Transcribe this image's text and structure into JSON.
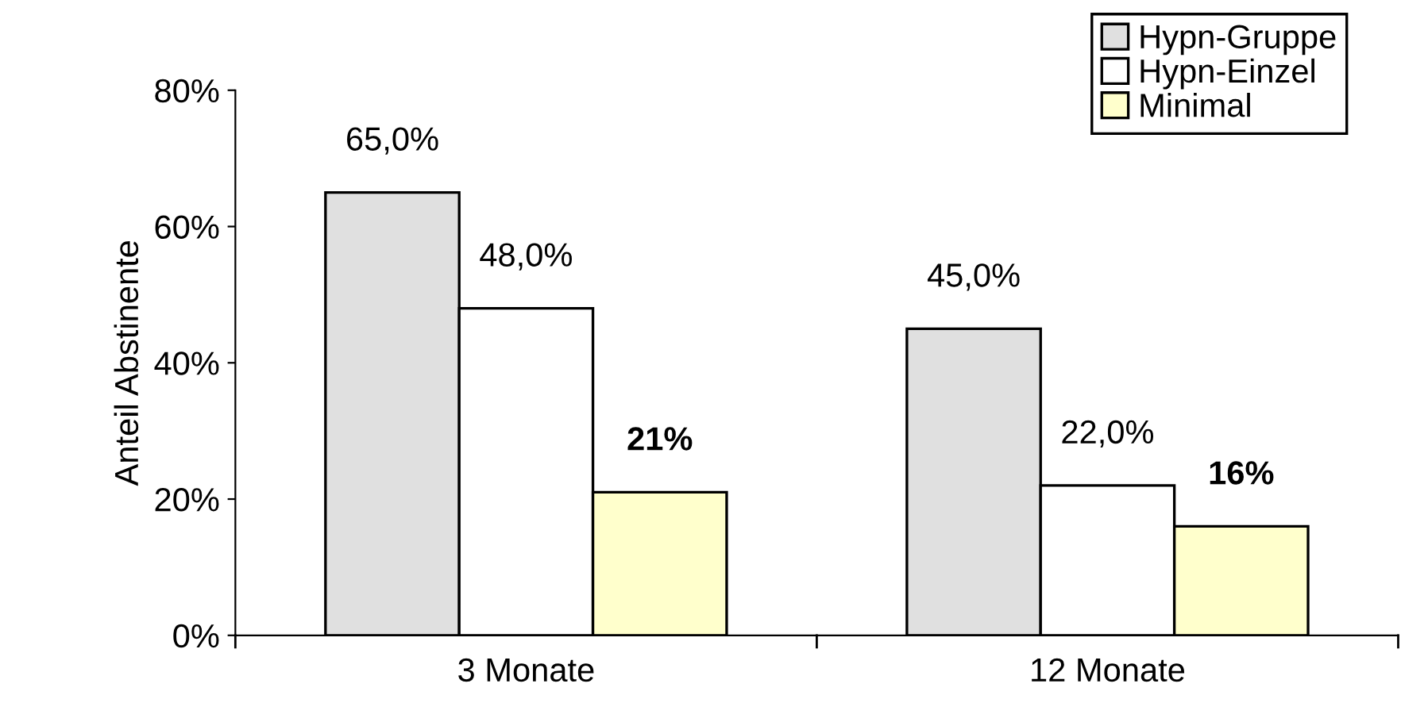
{
  "chart_data": {
    "type": "bar",
    "ylabel": "Anteil Abstinente",
    "categories": [
      "3 Monate",
      "12 Monate"
    ],
    "series": [
      {
        "name": "Hypn-Gruppe",
        "color": "#e0e0e0",
        "values": [
          65,
          45
        ],
        "value_labels": [
          "65,0%",
          "45,0%"
        ]
      },
      {
        "name": "Hypn-Einzel",
        "color": "#ffffff",
        "values": [
          48,
          22
        ],
        "value_labels": [
          "48,0%",
          "22,0%"
        ]
      },
      {
        "name": "Minimal",
        "color": "#ffffcc",
        "values": [
          21,
          16
        ],
        "value_labels": [
          "21%",
          "16%"
        ]
      }
    ],
    "ylim": [
      0,
      80
    ],
    "yticks": [
      {
        "value": 0,
        "label": "0%"
      },
      {
        "value": 20,
        "label": "20%"
      },
      {
        "value": 40,
        "label": "40%"
      },
      {
        "value": 60,
        "label": "60%"
      },
      {
        "value": 80,
        "label": "80%"
      }
    ],
    "grid": false,
    "legend": "top right"
  }
}
